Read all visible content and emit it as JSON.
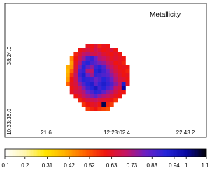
{
  "chart_data": {
    "type": "heatmap",
    "title": "Metallicity",
    "x_labels": [
      "21.6",
      "12:23:02.4",
      "22:43.2"
    ],
    "y_labels": [
      "38:24.0",
      "10:33:36.0"
    ],
    "z": [
      [
        null,
        null,
        null,
        null,
        null,
        0.62,
        0.6,
        0.65,
        0.58,
        0.62,
        0.6,
        null,
        null,
        null,
        null,
        null
      ],
      [
        null,
        null,
        null,
        0.6,
        0.63,
        0.66,
        0.62,
        0.68,
        0.64,
        0.6,
        0.62,
        0.65,
        0.6,
        null,
        null,
        null
      ],
      [
        null,
        null,
        0.58,
        0.64,
        0.7,
        0.72,
        0.68,
        0.66,
        0.7,
        0.64,
        0.62,
        0.6,
        0.63,
        0.6,
        null,
        null
      ],
      [
        null,
        0.45,
        0.6,
        0.68,
        0.75,
        0.85,
        0.88,
        0.8,
        0.72,
        0.7,
        0.66,
        0.62,
        0.64,
        0.62,
        0.6,
        null
      ],
      [
        null,
        0.42,
        0.62,
        0.72,
        0.86,
        0.9,
        0.85,
        0.82,
        0.78,
        0.75,
        0.7,
        0.66,
        0.6,
        0.62,
        0.58,
        null
      ],
      [
        0.4,
        0.44,
        0.64,
        0.78,
        0.9,
        0.82,
        0.76,
        0.86,
        0.9,
        0.84,
        0.74,
        0.7,
        0.64,
        0.6,
        0.62,
        0.6
      ],
      [
        0.38,
        0.5,
        0.66,
        0.84,
        0.88,
        0.72,
        0.7,
        0.9,
        0.92,
        0.86,
        0.8,
        0.72,
        0.66,
        0.62,
        0.6,
        0.58
      ],
      [
        0.4,
        0.56,
        0.7,
        0.86,
        0.92,
        0.8,
        0.74,
        0.88,
        0.86,
        0.84,
        0.82,
        0.76,
        0.7,
        0.64,
        0.6,
        0.62
      ],
      [
        0.42,
        0.6,
        0.68,
        0.82,
        0.9,
        0.88,
        0.86,
        0.8,
        0.84,
        0.9,
        0.86,
        0.8,
        0.72,
        0.66,
        0.64,
        0.6
      ],
      [
        0.5,
        0.62,
        0.66,
        0.76,
        0.84,
        0.9,
        0.92,
        0.82,
        0.88,
        0.92,
        0.88,
        0.84,
        0.76,
        0.7,
        0.92,
        0.62
      ],
      [
        null,
        0.6,
        0.64,
        0.7,
        0.78,
        0.86,
        0.9,
        0.94,
        0.86,
        0.9,
        0.84,
        0.8,
        0.7,
        0.66,
        1.0,
        null
      ],
      [
        null,
        0.62,
        0.66,
        0.68,
        0.72,
        0.8,
        0.84,
        0.9,
        0.88,
        0.82,
        0.76,
        0.72,
        0.66,
        0.62,
        0.6,
        null
      ],
      [
        null,
        null,
        0.6,
        0.64,
        0.7,
        0.74,
        0.78,
        0.82,
        0.76,
        0.72,
        0.7,
        0.66,
        0.62,
        0.6,
        null,
        null
      ],
      [
        null,
        null,
        null,
        0.58,
        0.62,
        0.66,
        0.68,
        0.7,
        0.66,
        0.64,
        0.62,
        0.6,
        0.56,
        null,
        null,
        null
      ],
      [
        null,
        null,
        null,
        null,
        0.56,
        0.6,
        0.62,
        0.64,
        0.6,
        1.05,
        0.58,
        0.55,
        null,
        null,
        null,
        null
      ],
      [
        null,
        null,
        null,
        null,
        null,
        0.55,
        0.58,
        0.6,
        0.56,
        0.54,
        0.52,
        null,
        null,
        null,
        null,
        null
      ]
    ],
    "clim": [
      0.1,
      1.1
    ],
    "cticks": [
      0.1,
      0.2,
      0.31,
      0.42,
      0.52,
      0.63,
      0.73,
      0.83,
      0.94,
      1,
      1.1
    ],
    "colormap": [
      "#ffffff",
      "#fff6b0",
      "#ffe600",
      "#ffae00",
      "#ff6000",
      "#ee1410",
      "#c41464",
      "#6a20c4",
      "#2424d8",
      "#0808a0",
      "#000000"
    ]
  }
}
